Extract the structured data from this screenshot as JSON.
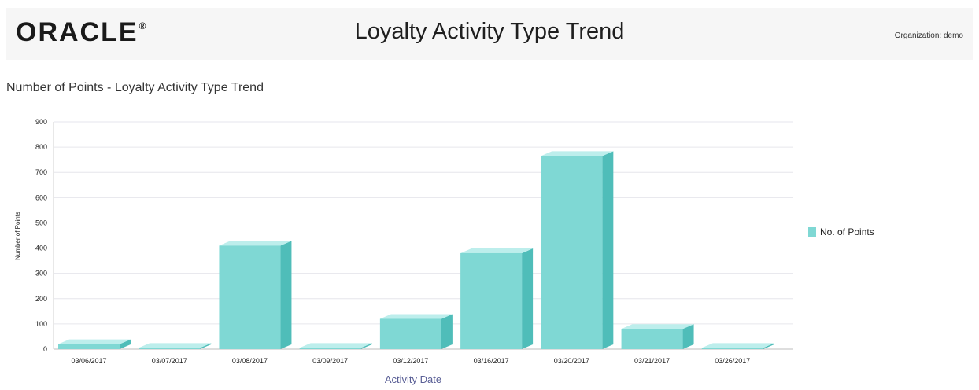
{
  "header": {
    "logo": "ORACLE",
    "logo_mark": "®",
    "title": "Loyalty Activity Type Trend",
    "organization": "Organization: demo"
  },
  "chart_data": {
    "type": "bar",
    "title": "Number of Points - Loyalty Activity Type Trend",
    "xlabel": "Activity Date",
    "ylabel": "Number of Points",
    "categories": [
      "03/06/2017",
      "03/07/2017",
      "03/08/2017",
      "03/09/2017",
      "03/12/2017",
      "03/16/2017",
      "03/20/2017",
      "03/21/2017",
      "03/26/2017"
    ],
    "series": [
      {
        "name": "No. of Points",
        "values": [
          20,
          5,
          410,
          5,
          120,
          380,
          765,
          80,
          5
        ]
      }
    ],
    "ylim": [
      0,
      900
    ],
    "yticks": [
      0,
      100,
      200,
      300,
      400,
      500,
      600,
      700,
      800,
      900
    ],
    "grid": true,
    "legend_position": "right",
    "colors": {
      "bar_front": "#7fd8d4",
      "bar_side": "#4fbdb9",
      "bar_top": "#bdeeec"
    }
  }
}
